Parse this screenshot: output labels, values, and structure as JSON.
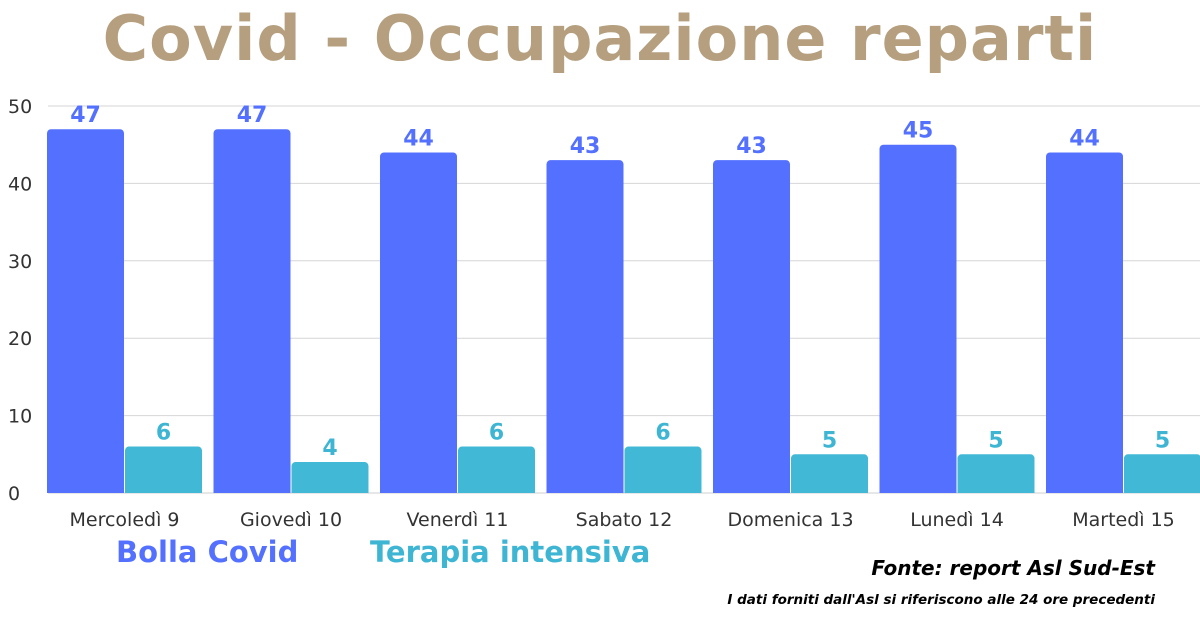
{
  "page": {
    "title": "Covid - Occupazione reparti"
  },
  "chart_data": {
    "type": "bar",
    "categories": [
      "Mercoledì 9",
      "Giovedì 10",
      "Venerdì 11",
      "Sabato 12",
      "Domenica 13",
      "Lunedì 14",
      "Martedì 15"
    ],
    "series": [
      {
        "name": "Bolla Covid",
        "color": "#5370ff",
        "label_color": "#5370ff",
        "values": [
          47,
          47,
          44,
          43,
          43,
          45,
          44
        ]
      },
      {
        "name": "Terapia intensiva",
        "color": "#41b9d6",
        "label_color": "#3db5d3",
        "values": [
          6,
          4,
          6,
          6,
          5,
          5,
          5
        ]
      }
    ],
    "yticks": [
      0,
      10,
      20,
      30,
      40,
      50
    ],
    "ylim": [
      0,
      50
    ],
    "grid": true,
    "legend_position": "bottom-left"
  },
  "footer": {
    "source": "Fonte: report Asl Sud-Est",
    "note": "I dati forniti dall'Asl si riferiscono alle 24 ore precedenti"
  }
}
